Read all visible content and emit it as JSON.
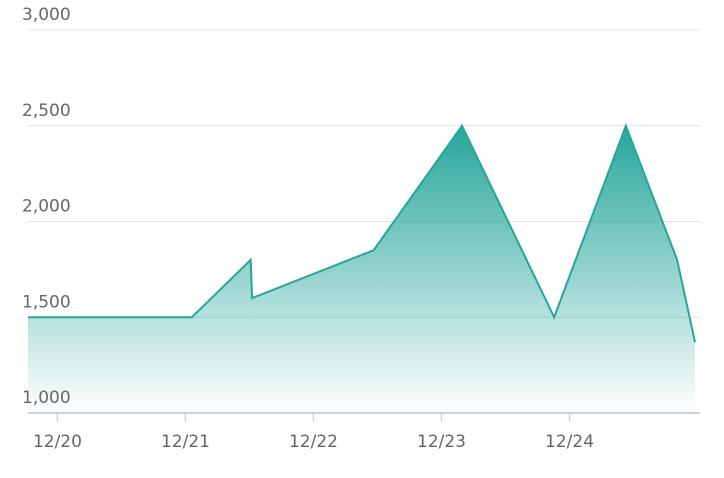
{
  "chart_data": {
    "type": "area",
    "x": [
      19.77,
      21.05,
      21.51,
      21.52,
      22.47,
      23.16,
      23.88,
      24.44,
      24.84,
      24.98
    ],
    "series": [
      {
        "color": "#26a69a",
        "values": [
          1500,
          1500,
          1800,
          1600,
          1850,
          2500,
          1500,
          2500,
          1800,
          1370
        ]
      }
    ],
    "xlim": [
      19.77,
      24.98
    ],
    "xticks": [
      {
        "value": 20,
        "label": "12/20"
      },
      {
        "value": 21,
        "label": "12/21"
      },
      {
        "value": 22,
        "label": "12/22"
      },
      {
        "value": 23,
        "label": "12/23"
      },
      {
        "value": 24,
        "label": "12/24"
      }
    ],
    "ylim": [
      1000,
      3000
    ],
    "yticks": [
      {
        "value": 1000,
        "label": "1,000"
      },
      {
        "value": 1500,
        "label": "1,500"
      },
      {
        "value": 2000,
        "label": "2,000"
      },
      {
        "value": 2500,
        "label": "2,500"
      },
      {
        "value": 3000,
        "label": "3,000"
      }
    ],
    "grid": true
  }
}
